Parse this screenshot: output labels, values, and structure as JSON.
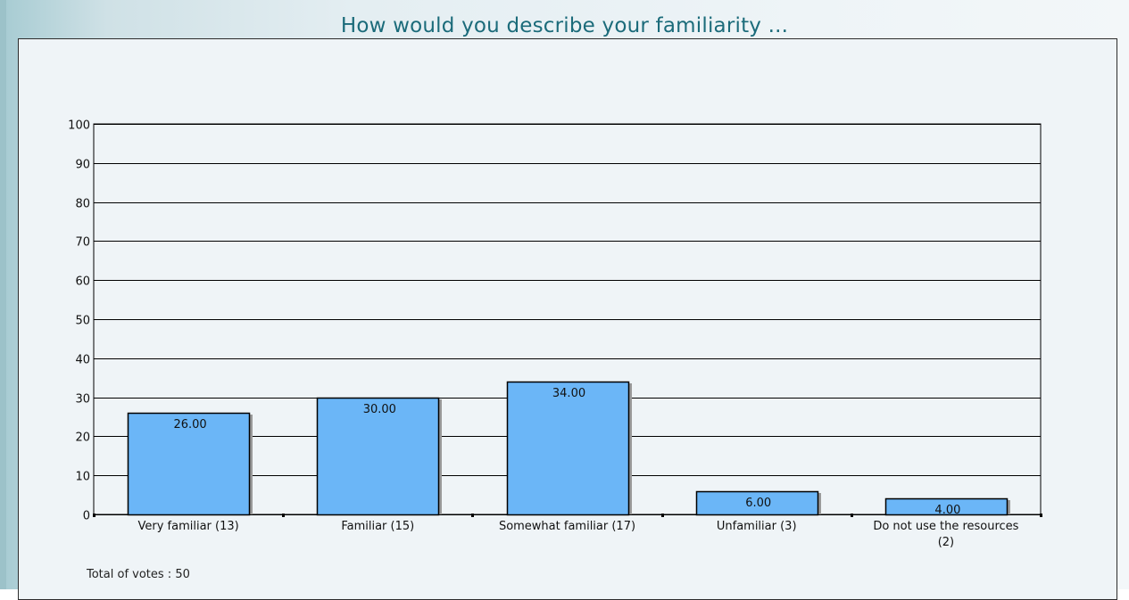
{
  "chart": {
    "title": "How would you describe your familiarity ...",
    "total_votes": "Total of votes : 50"
  },
  "chart_data": {
    "type": "bar",
    "title": "How would you describe your familiarity ...",
    "xlabel": "",
    "ylabel": "",
    "categories": [
      "Very familiar (13)",
      "Familiar (15)",
      "Somewhat familiar (17)",
      "Unfamiliar (3)",
      "Do not use the resources (2)"
    ],
    "values": [
      26.0,
      30.0,
      34.0,
      6.0,
      4.0
    ],
    "value_labels": [
      "26.00",
      "30.00",
      "34.00",
      "6.00",
      "4.00"
    ],
    "ylim": [
      0,
      100
    ],
    "yticks": [
      0,
      10,
      20,
      30,
      40,
      50,
      60,
      70,
      80,
      90,
      100
    ],
    "grid": true,
    "legend": "none",
    "colors": {
      "bar": "#6bb6f7",
      "bar_shadow": "#9a9a9a",
      "title": "#1b6b7a"
    }
  }
}
